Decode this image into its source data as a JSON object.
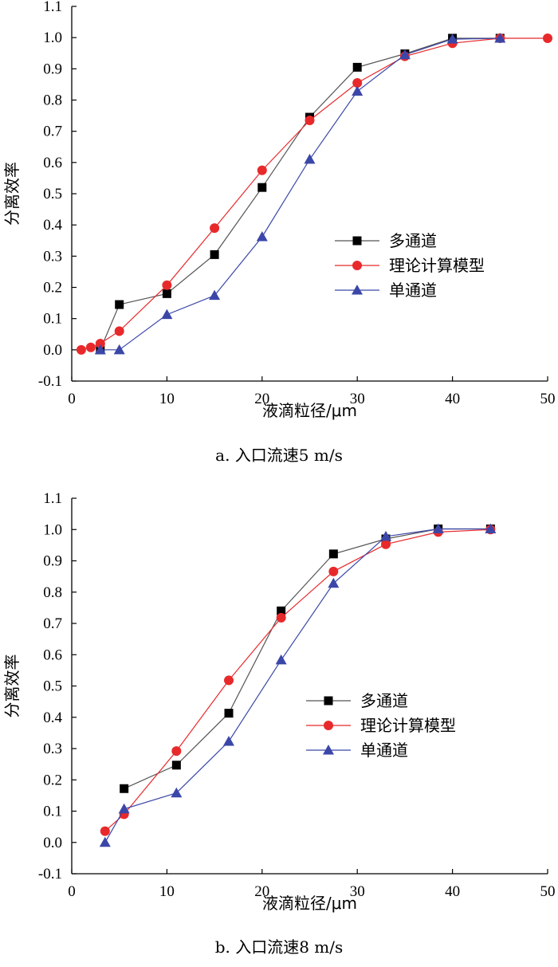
{
  "chart_data": [
    {
      "type": "line",
      "caption": "a. 入口流速5 m/s",
      "xlabel": "液滴粒径/μm",
      "ylabel": "分离效率",
      "xlim": [
        0,
        50
      ],
      "ylim": [
        -0.1,
        1.1
      ],
      "xticks": [
        0,
        10,
        20,
        30,
        40,
        50
      ],
      "yticks": [
        -0.1,
        0.0,
        0.1,
        0.2,
        0.3,
        0.4,
        0.5,
        0.6,
        0.7,
        0.8,
        0.9,
        1.0,
        1.1
      ],
      "ytick_labels": [
        "-0.1",
        "0.0",
        "0.1",
        "0.2",
        "0.3",
        "0.4",
        "0.5",
        "0.6",
        "0.7",
        "0.8",
        "0.9",
        "1.0",
        "1.1"
      ],
      "legend_position": "center-right",
      "series": [
        {
          "name": "多通道",
          "marker": "square",
          "color": "#000000",
          "line_color": "#555555",
          "points": [
            [
              3,
              0.0
            ],
            [
              5,
              0.145
            ],
            [
              10,
              0.18
            ],
            [
              15,
              0.305
            ],
            [
              20,
              0.52
            ],
            [
              25,
              0.745
            ],
            [
              30,
              0.905
            ],
            [
              35,
              0.948
            ],
            [
              40,
              0.998
            ],
            [
              45,
              0.998
            ]
          ]
        },
        {
          "name": "理论计算模型",
          "marker": "circle",
          "color": "#e8292b",
          "line_color": "#e8292b",
          "points": [
            [
              1,
              0.0
            ],
            [
              2,
              0.008
            ],
            [
              3,
              0.02
            ],
            [
              5,
              0.06
            ],
            [
              10,
              0.207
            ],
            [
              15,
              0.39
            ],
            [
              20,
              0.575
            ],
            [
              25,
              0.735
            ],
            [
              30,
              0.855
            ],
            [
              35,
              0.94
            ],
            [
              40,
              0.982
            ],
            [
              45,
              0.998
            ],
            [
              50,
              0.998
            ]
          ]
        },
        {
          "name": "单通道",
          "marker": "triangle",
          "color": "#3b47a8",
          "line_color": "#3b47a8",
          "points": [
            [
              3,
              0.0
            ],
            [
              5,
              0.0
            ],
            [
              10,
              0.113
            ],
            [
              15,
              0.174
            ],
            [
              20,
              0.362
            ],
            [
              25,
              0.61
            ],
            [
              30,
              0.828
            ],
            [
              35,
              0.945
            ],
            [
              40,
              0.995
            ],
            [
              45,
              0.998
            ]
          ]
        }
      ]
    },
    {
      "type": "line",
      "caption": "b. 入口流速8 m/s",
      "xlabel": "液滴粒径/μm",
      "ylabel": "分离效率",
      "xlim": [
        0,
        50
      ],
      "ylim": [
        -0.1,
        1.1
      ],
      "xticks": [
        0,
        10,
        20,
        30,
        40,
        50
      ],
      "yticks": [
        -0.1,
        0.0,
        0.1,
        0.2,
        0.3,
        0.4,
        0.5,
        0.6,
        0.7,
        0.8,
        0.9,
        1.0,
        1.1
      ],
      "ytick_labels": [
        "-0.1",
        "0.0",
        "0.1",
        "0.2",
        "0.3",
        "0.4",
        "0.5",
        "0.6",
        "0.7",
        "0.8",
        "0.9",
        "1.0",
        "1.1"
      ],
      "legend_position": "center-right",
      "series": [
        {
          "name": "多通道",
          "marker": "square",
          "color": "#000000",
          "line_color": "#555555",
          "points": [
            [
              5.5,
              0.172
            ],
            [
              11,
              0.247
            ],
            [
              16.5,
              0.413
            ],
            [
              22,
              0.74
            ],
            [
              27.5,
              0.922
            ],
            [
              33,
              0.97
            ],
            [
              38.5,
              1.002
            ],
            [
              44,
              1.002
            ]
          ]
        },
        {
          "name": "理论计算模型",
          "marker": "circle",
          "color": "#e8292b",
          "line_color": "#e8292b",
          "points": [
            [
              3.5,
              0.036
            ],
            [
              5.5,
              0.09
            ],
            [
              11,
              0.292
            ],
            [
              16.5,
              0.518
            ],
            [
              22,
              0.718
            ],
            [
              27.5,
              0.866
            ],
            [
              33,
              0.953
            ],
            [
              38.5,
              0.992
            ],
            [
              44,
              1.0
            ]
          ]
        },
        {
          "name": "单通道",
          "marker": "triangle",
          "color": "#3b47a8",
          "line_color": "#3b47a8",
          "points": [
            [
              3.5,
              0.0
            ],
            [
              5.5,
              0.107
            ],
            [
              11,
              0.158
            ],
            [
              16.5,
              0.323
            ],
            [
              22,
              0.583
            ],
            [
              27.5,
              0.828
            ],
            [
              33,
              0.978
            ],
            [
              38.5,
              1.002
            ],
            [
              44,
              1.002
            ]
          ]
        }
      ]
    }
  ]
}
